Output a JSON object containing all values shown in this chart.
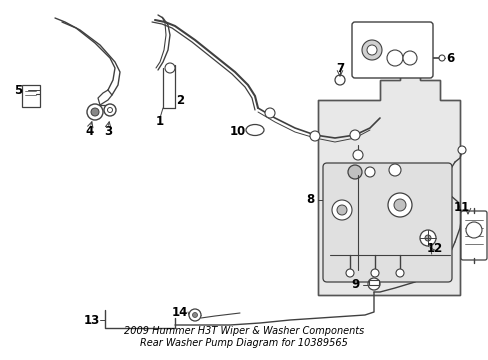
{
  "title": "2009 Hummer H3T Wiper & Washer Components\nRear Washer Pump Diagram for 10389565",
  "background_color": "#ffffff",
  "line_color": "#404040",
  "label_color": "#000000",
  "fig_width": 4.89,
  "fig_height": 3.6,
  "dpi": 100,
  "title_fontsize": 7.0,
  "label_fontsize": 8.5
}
